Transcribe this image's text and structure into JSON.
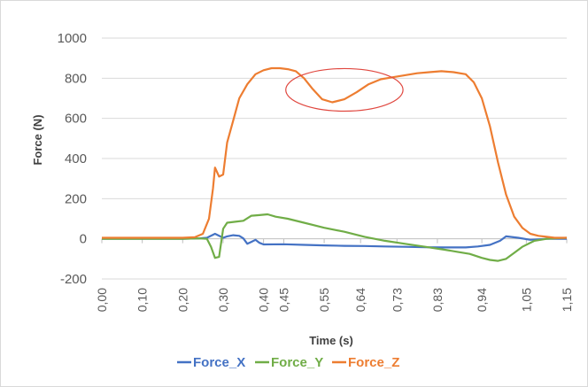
{
  "chart_data": {
    "type": "line",
    "title": "",
    "xlabel": "Time (s)",
    "ylabel": "Force (N)",
    "xlim": [
      0,
      1.15
    ],
    "ylim": [
      -200,
      1000
    ],
    "y_ticks": [
      -200,
      0,
      200,
      400,
      600,
      800,
      1000
    ],
    "x_ticks": [
      0,
      0.1,
      0.2,
      0.3,
      0.4,
      0.45,
      0.55,
      0.64,
      0.73,
      0.83,
      0.94,
      1.05,
      1.15
    ],
    "x_tick_labels": [
      "0,00",
      "0,10",
      "0,20",
      "0,30",
      "0,40",
      "0,45",
      "0,55",
      "0,64",
      "0,73",
      "0,83",
      "0,94",
      "1,05",
      "1,15"
    ],
    "grid": true,
    "legend_position": "bottom",
    "colors": {
      "Force_X": "#4472c4",
      "Force_Y": "#70ad47",
      "Force_Z": "#ed7d31",
      "annotation": "#e0473f"
    },
    "annotation": {
      "shape": "ellipse",
      "center_x": 0.6,
      "center_y": 742,
      "radius_x": 0.145,
      "radius_y": 106
    },
    "series": [
      {
        "name": "Force_X",
        "x": [
          0,
          0.05,
          0.1,
          0.15,
          0.2,
          0.24,
          0.26,
          0.28,
          0.295,
          0.3,
          0.31,
          0.325,
          0.34,
          0.35,
          0.36,
          0.37,
          0.38,
          0.39,
          0.4,
          0.45,
          0.5,
          0.55,
          0.6,
          0.65,
          0.7,
          0.75,
          0.8,
          0.85,
          0.9,
          0.93,
          0.96,
          0.985,
          1.0,
          1.03,
          1.06,
          1.1,
          1.15
        ],
        "y": [
          0,
          0,
          0,
          0,
          0,
          2,
          5,
          25,
          10,
          5,
          12,
          18,
          15,
          2,
          -25,
          -15,
          -5,
          -20,
          -28,
          -27,
          -30,
          -33,
          -35,
          -36,
          -38,
          -40,
          -42,
          -43,
          -43,
          -38,
          -30,
          -10,
          12,
          5,
          -5,
          0,
          0
        ]
      },
      {
        "name": "Force_Y",
        "x": [
          0,
          0.05,
          0.1,
          0.15,
          0.2,
          0.24,
          0.26,
          0.27,
          0.28,
          0.29,
          0.3,
          0.31,
          0.33,
          0.35,
          0.37,
          0.39,
          0.41,
          0.43,
          0.46,
          0.5,
          0.55,
          0.6,
          0.65,
          0.7,
          0.75,
          0.8,
          0.85,
          0.88,
          0.91,
          0.94,
          0.96,
          0.98,
          1.0,
          1.02,
          1.04,
          1.07,
          1.1,
          1.15
        ],
        "y": [
          0,
          0,
          0,
          0,
          0,
          2,
          0,
          -40,
          -95,
          -90,
          50,
          80,
          85,
          90,
          115,
          118,
          122,
          110,
          100,
          80,
          55,
          35,
          10,
          -10,
          -25,
          -40,
          -55,
          -65,
          -75,
          -95,
          -105,
          -110,
          -100,
          -70,
          -40,
          -10,
          0,
          5
        ]
      },
      {
        "name": "Force_Z",
        "x": [
          0,
          0.05,
          0.1,
          0.15,
          0.2,
          0.23,
          0.25,
          0.265,
          0.275,
          0.28,
          0.29,
          0.3,
          0.31,
          0.325,
          0.34,
          0.36,
          0.38,
          0.4,
          0.42,
          0.44,
          0.46,
          0.48,
          0.5,
          0.52,
          0.545,
          0.57,
          0.6,
          0.63,
          0.66,
          0.69,
          0.72,
          0.75,
          0.78,
          0.81,
          0.84,
          0.87,
          0.9,
          0.92,
          0.94,
          0.96,
          0.98,
          1.0,
          1.02,
          1.04,
          1.06,
          1.08,
          1.1,
          1.12,
          1.15
        ],
        "y": [
          5,
          5,
          5,
          5,
          5,
          8,
          25,
          100,
          250,
          355,
          310,
          320,
          480,
          590,
          700,
          770,
          820,
          840,
          850,
          850,
          845,
          835,
          800,
          750,
          695,
          680,
          695,
          730,
          770,
          795,
          805,
          815,
          825,
          830,
          835,
          830,
          820,
          780,
          700,
          560,
          380,
          220,
          110,
          55,
          25,
          15,
          10,
          5,
          5
        ]
      }
    ]
  }
}
